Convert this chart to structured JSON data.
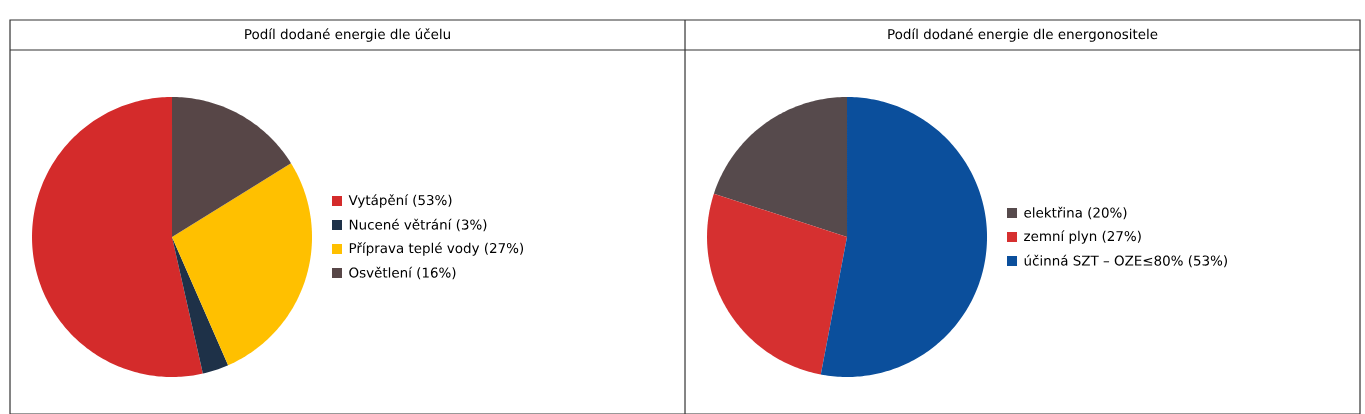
{
  "chart_data": [
    {
      "type": "pie",
      "title": "Podíl dodané energie dle účelu",
      "categories": [
        "Vytápění (53%)",
        "Nucené větrání (3%)",
        "Příprava teplé vody (27%)",
        "Osvětlení (16%)"
      ],
      "values": [
        53,
        3,
        27,
        16
      ],
      "colors": [
        "#d42b2b",
        "#1e3148",
        "#ffc000",
        "#574647"
      ],
      "legend": "right"
    },
    {
      "type": "pie",
      "title": "Podíl dodané energie dle energonositele",
      "categories": [
        "elektřina (20%)",
        "zemní plyn (27%)",
        "účinná SZT – OZE≤80% (53%)"
      ],
      "values": [
        20,
        27,
        53
      ],
      "colors": [
        "#564a4c",
        "#d63030",
        "#0b4f9c"
      ],
      "legend": "right"
    }
  ]
}
